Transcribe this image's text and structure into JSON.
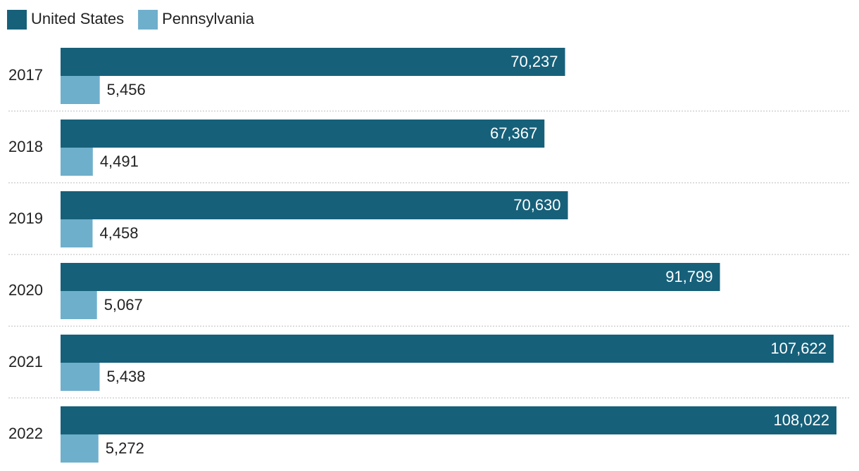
{
  "chart_data": {
    "type": "bar",
    "orientation": "horizontal",
    "legend": "top-left",
    "categories": [
      "2017",
      "2018",
      "2019",
      "2020",
      "2021",
      "2022"
    ],
    "series": [
      {
        "name": "United States",
        "color": "#16607a",
        "values": [
          70237,
          67367,
          70630,
          91799,
          107622,
          108022
        ],
        "value_labels": [
          "70,237",
          "67,367",
          "70,630",
          "91,799",
          "107,622",
          "108,022"
        ]
      },
      {
        "name": "Pennsylvania",
        "color": "#6eafcc",
        "values": [
          5456,
          4491,
          4458,
          5067,
          5438,
          5272
        ],
        "value_labels": [
          "5,456",
          "4,491",
          "4,458",
          "5,067",
          "5,438",
          "5,272"
        ]
      }
    ]
  }
}
